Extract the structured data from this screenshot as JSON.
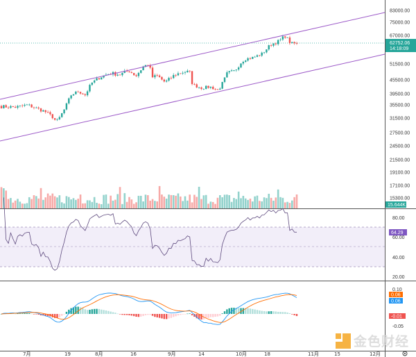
{
  "price_axis": {
    "ticks": [
      "83000.00",
      "75000.00",
      "67000.00",
      "51500.00",
      "45500.00",
      "39500.00",
      "35500.00",
      "31500.00",
      "27500.00",
      "24500.00",
      "21500.00",
      "19100.00",
      "17100.00",
      "15300.00"
    ],
    "tick_values": [
      83000,
      75000,
      67000,
      51500,
      45500,
      39500,
      35500,
      31500,
      27500,
      24500,
      21500,
      19100,
      17100,
      15300
    ],
    "last_price": "62752.06",
    "countdown": "14:18:09",
    "volume_label": "15.644K"
  },
  "rsi_axis": {
    "ticks": [
      "80.00",
      "60.00",
      "40.00",
      "20.00"
    ],
    "value": "64.29",
    "upper_band": 70,
    "lower_band": 30
  },
  "macd_axis": {
    "ticks": [
      "0.10",
      "-0.05"
    ],
    "macd_value": "0.06",
    "signal_value": "0.06",
    "hist_value": "-0.01"
  },
  "x_axis": {
    "labels": [
      "7月",
      "19",
      "8月",
      "16",
      "9月",
      "14",
      "10月",
      "18",
      "11月",
      "15",
      "12月"
    ]
  },
  "settings_icon": "gear-icon",
  "watermark": "金色财经",
  "colors": {
    "up": "#26a69a",
    "down": "#ef5350",
    "channel": "#9c59c8",
    "rsi": "#7e57c2",
    "macd": "#2196f3",
    "signal": "#ff6d00"
  },
  "chart_data": {
    "type": "candlestick",
    "keypoints_day_price": [
      [
        0,
        35000
      ],
      [
        10,
        34800
      ],
      [
        18,
        35500
      ],
      [
        30,
        33500
      ],
      [
        35,
        32000
      ],
      [
        38,
        30500
      ],
      [
        40,
        31500
      ],
      [
        44,
        34500
      ],
      [
        48,
        39000
      ],
      [
        53,
        40500
      ],
      [
        58,
        39000
      ],
      [
        62,
        44000
      ],
      [
        68,
        46500
      ],
      [
        75,
        48000
      ],
      [
        82,
        47500
      ],
      [
        88,
        49000
      ],
      [
        93,
        47000
      ],
      [
        98,
        50500
      ],
      [
        102,
        51500
      ],
      [
        104,
        46500
      ],
      [
        108,
        47000
      ],
      [
        113,
        44500
      ],
      [
        120,
        47500
      ],
      [
        126,
        48500
      ],
      [
        130,
        48500
      ],
      [
        132,
        43500
      ],
      [
        138,
        42000
      ],
      [
        144,
        42500
      ],
      [
        150,
        41000
      ],
      [
        156,
        48000
      ],
      [
        161,
        48800
      ],
      [
        168,
        54000
      ],
      [
        174,
        55000
      ],
      [
        180,
        57000
      ],
      [
        186,
        62000
      ],
      [
        192,
        64000
      ],
      [
        196,
        66800
      ],
      [
        200,
        62500
      ],
      [
        204,
        62752
      ]
    ],
    "candle_count": 128
  }
}
